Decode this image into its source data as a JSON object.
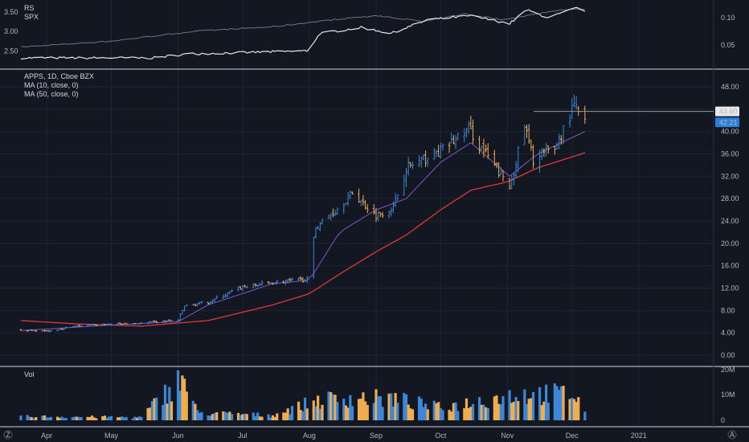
{
  "colors": {
    "background": "#131722",
    "separator": "#d1d4dc",
    "grid": "#1f2433",
    "text": "#b2b5be",
    "up": "#3d87d9",
    "down": "#f0ad4e",
    "ma10": "#7e57c2",
    "ma50": "#e03838",
    "rs_line": "#e6e6e6",
    "spx_line": "#6f7380",
    "last_price_badge": "#2a7fdb",
    "resistance_badge": "#e8e8e8",
    "resistance_line": "#9598a1"
  },
  "rs_pane": {
    "legend": [
      "RS",
      "SPX"
    ],
    "left_axis_labels": [
      "3.50",
      "3.00",
      "2.50"
    ],
    "right_axis_labels": [
      "0.10",
      "0.05"
    ]
  },
  "price_pane": {
    "legend": [
      "APPS, 1D, Cboe BZX",
      "MA (10, close, 0)",
      "MA (50, close, 0)"
    ],
    "axis_labels": [
      "48.00",
      "44.00",
      "40.00",
      "36.00",
      "32.00",
      "28.00",
      "24.00",
      "20.00",
      "16.00",
      "12.00",
      "8.00",
      "4.00",
      "0.00"
    ],
    "resistance_label": "43.60",
    "last_price_label": "42.21"
  },
  "volume_pane": {
    "legend": "Vol",
    "axis_labels": [
      "20M",
      "10M",
      "0"
    ]
  },
  "x_axis": {
    "months": [
      "Apr",
      "May",
      "Jun",
      "Jul",
      "Aug",
      "Sep",
      "Oct",
      "Nov",
      "Dec",
      "2021"
    ]
  },
  "corner_icons": [
    "Z",
    "A"
  ],
  "chart_data": {
    "type": "ohlc",
    "symbol": "APPS",
    "interval": "1D",
    "exchange": "Cboe BZX",
    "y_range_price": [
      0,
      48
    ],
    "resistance_level": 43.6,
    "last_price": 42.21,
    "price_keypoints": [
      {
        "date": "2020-03-20",
        "close": 4.5
      },
      {
        "date": "2020-04-01",
        "close": 4.3
      },
      {
        "date": "2020-04-15",
        "close": 5.2
      },
      {
        "date": "2020-05-01",
        "close": 5.6
      },
      {
        "date": "2020-05-15",
        "close": 5.7
      },
      {
        "date": "2020-06-01",
        "close": 6.3
      },
      {
        "date": "2020-06-04",
        "close": 8.8
      },
      {
        "date": "2020-06-15",
        "close": 9.5
      },
      {
        "date": "2020-07-01",
        "close": 12.2
      },
      {
        "date": "2020-07-15",
        "close": 13.0
      },
      {
        "date": "2020-07-31",
        "close": 13.6
      },
      {
        "date": "2020-08-04",
        "close": 23.0
      },
      {
        "date": "2020-08-15",
        "close": 26.5
      },
      {
        "date": "2020-08-21",
        "close": 29.0
      },
      {
        "date": "2020-09-01",
        "close": 25.0
      },
      {
        "date": "2020-09-09",
        "close": 26.5
      },
      {
        "date": "2020-09-15",
        "close": 33.5
      },
      {
        "date": "2020-10-01",
        "close": 36.5
      },
      {
        "date": "2020-10-14",
        "close": 40.5
      },
      {
        "date": "2020-10-21",
        "close": 36.5
      },
      {
        "date": "2020-11-02",
        "close": 30.0
      },
      {
        "date": "2020-11-09",
        "close": 41.0
      },
      {
        "date": "2020-11-13",
        "close": 35.0
      },
      {
        "date": "2020-11-23",
        "close": 37.0
      },
      {
        "date": "2020-12-02",
        "close": 44.5
      },
      {
        "date": "2020-12-07",
        "close": 42.21
      }
    ],
    "ma10_keypoints": [
      {
        "date": "2020-03-20",
        "value": 4.4
      },
      {
        "date": "2020-05-01",
        "value": 5.4
      },
      {
        "date": "2020-06-01",
        "value": 6.0
      },
      {
        "date": "2020-06-15",
        "value": 9.0
      },
      {
        "date": "2020-07-15",
        "value": 12.8
      },
      {
        "date": "2020-08-01",
        "value": 13.4
      },
      {
        "date": "2020-08-15",
        "value": 22.0
      },
      {
        "date": "2020-09-01",
        "value": 26.0
      },
      {
        "date": "2020-09-15",
        "value": 28.0
      },
      {
        "date": "2020-10-01",
        "value": 34.5
      },
      {
        "date": "2020-10-15",
        "value": 38.0
      },
      {
        "date": "2020-11-02",
        "value": 32.0
      },
      {
        "date": "2020-11-15",
        "value": 36.0
      },
      {
        "date": "2020-12-07",
        "value": 40.0
      }
    ],
    "ma50_keypoints": [
      {
        "date": "2020-03-20",
        "value": 6.2
      },
      {
        "date": "2020-04-15",
        "value": 5.6
      },
      {
        "date": "2020-05-15",
        "value": 5.2
      },
      {
        "date": "2020-06-15",
        "value": 6.2
      },
      {
        "date": "2020-07-15",
        "value": 9.0
      },
      {
        "date": "2020-08-01",
        "value": 11.0
      },
      {
        "date": "2020-08-15",
        "value": 14.5
      },
      {
        "date": "2020-09-01",
        "value": 18.5
      },
      {
        "date": "2020-09-15",
        "value": 21.5
      },
      {
        "date": "2020-10-01",
        "value": 26.0
      },
      {
        "date": "2020-10-15",
        "value": 29.5
      },
      {
        "date": "2020-11-01",
        "value": 31.0
      },
      {
        "date": "2020-11-15",
        "value": 33.5
      },
      {
        "date": "2020-12-07",
        "value": 36.2
      }
    ],
    "volume_keypoints_millions": [
      {
        "date": "2020-03-25",
        "value": 1.5
      },
      {
        "date": "2020-05-15",
        "value": 1.2
      },
      {
        "date": "2020-06-03",
        "value": 18.0
      },
      {
        "date": "2020-06-10",
        "value": 3.0
      },
      {
        "date": "2020-07-15",
        "value": 2.0
      },
      {
        "date": "2020-08-05",
        "value": 8.0
      },
      {
        "date": "2020-08-20",
        "value": 9.0
      },
      {
        "date": "2020-09-10",
        "value": 8.5
      },
      {
        "date": "2020-10-01",
        "value": 5.0
      },
      {
        "date": "2020-11-06",
        "value": 10.5
      },
      {
        "date": "2020-12-02",
        "value": 10.5
      },
      {
        "date": "2020-12-07",
        "value": 3.5
      }
    ],
    "rs_range": [
      2.3,
      3.6
    ],
    "spx_range": [
      0.02,
      0.12
    ]
  }
}
